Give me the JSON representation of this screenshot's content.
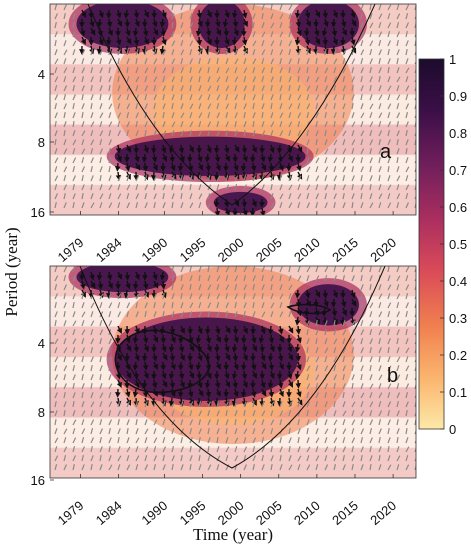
{
  "chart_data": [
    {
      "type": "heatmap",
      "panel_label": "a",
      "xlabel": "Time (year)",
      "ylabel": "Period (year)",
      "x_ticks": [
        "1979",
        "1984",
        "1990",
        "1995",
        "2000",
        "2005",
        "2010",
        "2015",
        "2020"
      ],
      "y_ticks": [
        "4",
        "8",
        "16"
      ],
      "y_scale": "log2",
      "xlim": [
        1975,
        2023
      ],
      "ylim": [
        2,
        16
      ],
      "grid": false,
      "high_power_regions": [
        {
          "x_range": [
            1979,
            1990
          ],
          "period_range": [
            2,
            3
          ]
        },
        {
          "x_range": [
            1995,
            2000
          ],
          "period_range": [
            2,
            3
          ]
        },
        {
          "x_range": [
            2008,
            2015
          ],
          "period_range": [
            2,
            3
          ]
        },
        {
          "x_range": [
            1984,
            2008
          ],
          "period_range": [
            8,
            11
          ]
        },
        {
          "x_range": [
            1997,
            2003
          ],
          "period_range": [
            14,
            16
          ]
        }
      ]
    },
    {
      "type": "heatmap",
      "panel_label": "b",
      "xlabel": "Time (year)",
      "ylabel": "Period (year)",
      "x_ticks": [
        "1979",
        "1984",
        "1990",
        "1995",
        "2000",
        "2005",
        "2010",
        "2015",
        "2020"
      ],
      "y_ticks": [
        "4",
        "8",
        "16"
      ],
      "y_scale": "log2",
      "xlim": [
        1975,
        2023
      ],
      "ylim": [
        2,
        16
      ],
      "grid": false,
      "high_power_regions": [
        {
          "x_range": [
            1979,
            1990
          ],
          "period_range": [
            2,
            2.5
          ]
        },
        {
          "x_range": [
            1984,
            2007
          ],
          "period_range": [
            3.5,
            7.5
          ]
        },
        {
          "x_range": [
            2008,
            2015
          ],
          "period_range": [
            2.5,
            3.5
          ]
        }
      ]
    }
  ],
  "colorbar": {
    "min": 0,
    "max": 1,
    "tick_labels": [
      "0",
      "0.1",
      "0.2",
      "0.3",
      "0.4",
      "0.5",
      "0.6",
      "0.7",
      "0.8",
      "0.9",
      "1"
    ],
    "colors": [
      "#fde8a8",
      "#fbb46d",
      "#f07f4f",
      "#d94a59",
      "#a92e5f",
      "#711f5c",
      "#3b0f48",
      "#1c0b2c"
    ]
  },
  "axes_text": {
    "ylabel": "Period (year)",
    "xlabel": "Time (year)"
  }
}
